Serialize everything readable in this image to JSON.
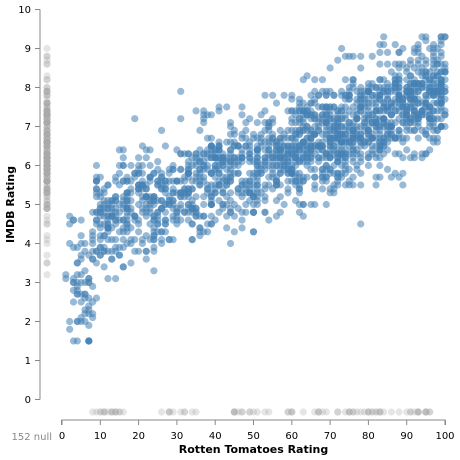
{
  "chart_data": {
    "type": "scatter",
    "xlabel": "Rotten Tomatoes Rating",
    "ylabel": "IMDB Rating",
    "xlim": [
      0,
      100
    ],
    "ylim": [
      0,
      10
    ],
    "x_ticks": [
      "0",
      "10",
      "20",
      "30",
      "40",
      "50",
      "60",
      "70",
      "80",
      "90",
      "100"
    ],
    "y_ticks": [
      "0",
      "1",
      "2",
      "3",
      "4",
      "5",
      "6",
      "7",
      "8",
      "9",
      "10"
    ],
    "null_label": "152 null",
    "point_color": "#4682b4",
    "null_color": "#aaaaaa",
    "grid": false,
    "points": [],
    "null_x_points": [],
    "null_y_points": []
  }
}
